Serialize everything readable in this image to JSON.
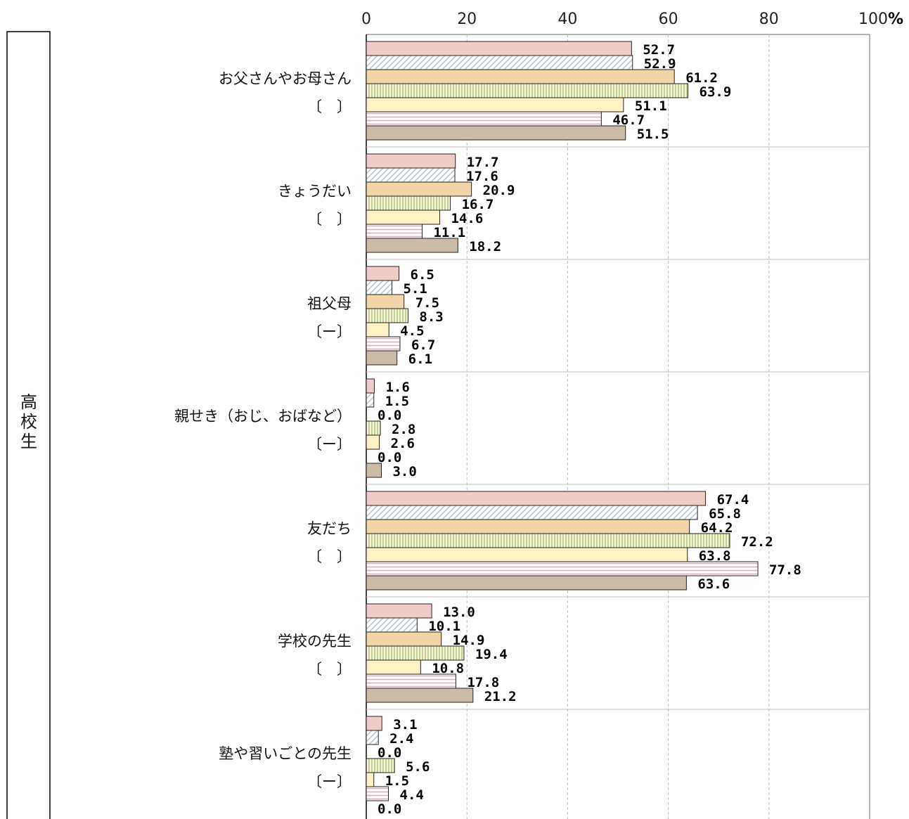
{
  "chart_data": {
    "type": "bar",
    "orientation": "horizontal",
    "group_label": "高校生",
    "axis": {
      "ticks": [
        "0",
        "20",
        "40",
        "60",
        "80",
        "100"
      ],
      "unit": "%",
      "xlim": [
        0,
        100
      ],
      "grid": true
    },
    "categories": [
      {
        "name": "お父さんやお母さん",
        "bracket": "〔　〕"
      },
      {
        "name": "きょうだい",
        "bracket": "〔　〕"
      },
      {
        "name": "祖父母",
        "bracket": "〔ー〕"
      },
      {
        "name": "親せき（おじ、おばなど）",
        "bracket": "〔ー〕"
      },
      {
        "name": "友だち",
        "bracket": "〔　〕"
      },
      {
        "name": "学校の先生",
        "bracket": "〔　〕"
      },
      {
        "name": "塾や習いごとの先生",
        "bracket": "〔ー〕"
      }
    ],
    "series": [
      {
        "fill": "#f1cbc6",
        "pattern": "solid",
        "values": [
          52.7,
          17.7,
          6.5,
          1.6,
          67.4,
          13.0,
          3.1
        ]
      },
      {
        "fill": "#ffffff",
        "pattern": "diagonal",
        "values": [
          52.9,
          17.6,
          5.1,
          1.5,
          65.8,
          10.1,
          2.4
        ]
      },
      {
        "fill": "#f3d4a6",
        "pattern": "solid",
        "values": [
          61.2,
          20.9,
          7.5,
          0.0,
          64.2,
          14.9,
          0.0
        ]
      },
      {
        "fill": "#eef3d4",
        "pattern": "vertical",
        "values": [
          63.9,
          16.7,
          8.3,
          2.8,
          72.2,
          19.4,
          5.6
        ]
      },
      {
        "fill": "#fff2c2",
        "pattern": "solid",
        "values": [
          51.1,
          14.6,
          4.5,
          2.6,
          63.8,
          10.8,
          1.5
        ]
      },
      {
        "fill": "#ffffff",
        "pattern": "horizontal",
        "values": [
          46.7,
          11.1,
          6.7,
          0.0,
          77.8,
          17.8,
          4.4
        ]
      },
      {
        "fill": "#cbbba7",
        "pattern": "solid",
        "values": [
          51.5,
          18.2,
          6.1,
          3.0,
          63.6,
          21.2,
          0.0
        ]
      }
    ],
    "value_labels": [
      [
        "52.7",
        "17.7",
        "6.5",
        "1.6",
        "67.4",
        "13.0",
        "3.1"
      ],
      [
        "52.9",
        "17.6",
        "5.1",
        "1.5",
        "65.8",
        "10.1",
        "2.4"
      ],
      [
        "61.2",
        "20.9",
        "7.5",
        "0.0",
        "64.2",
        "14.9",
        "0.0"
      ],
      [
        "63.9",
        "16.7",
        "8.3",
        "2.8",
        "72.2",
        "19.4",
        "5.6"
      ],
      [
        "51.1",
        "14.6",
        "4.5",
        "2.6",
        "63.8",
        "10.8",
        "1.5"
      ],
      [
        "46.7",
        "11.1",
        "6.7",
        "0.0",
        "77.8",
        "17.8",
        "4.4"
      ],
      [
        "51.5",
        "18.2",
        "6.1",
        "3.0",
        "63.6",
        "21.2",
        "0.0"
      ]
    ]
  }
}
